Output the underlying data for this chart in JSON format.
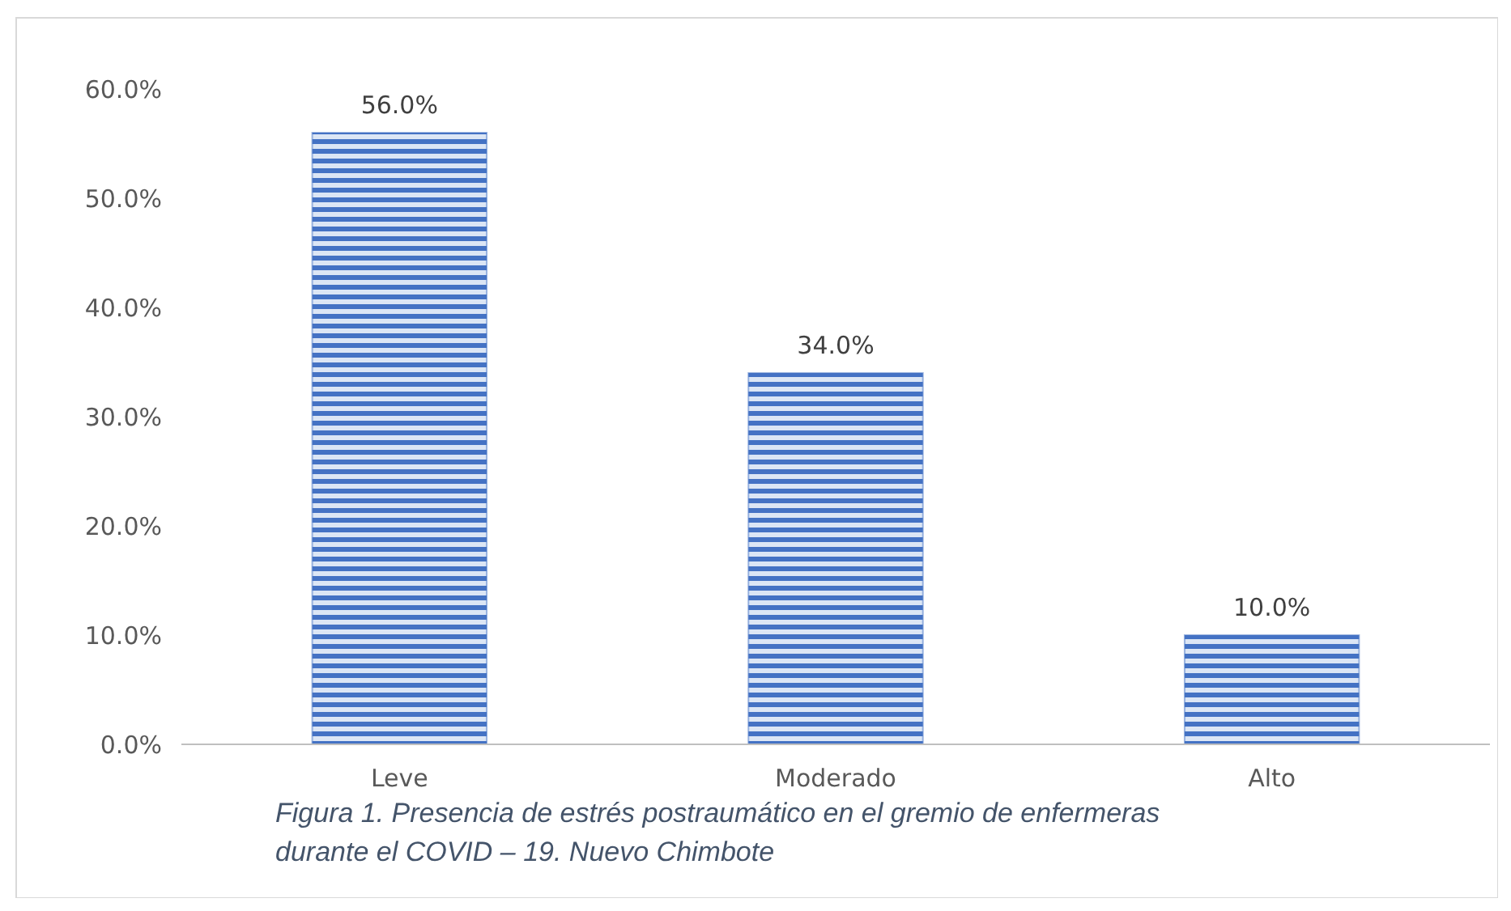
{
  "chart_data": {
    "type": "bar",
    "categories": [
      "Leve",
      "Moderado",
      "Alto"
    ],
    "values": [
      56.0,
      34.0,
      10.0
    ],
    "color": "#4472c4",
    "value_labels": [
      "56.0%",
      "34.0%",
      "10.0%"
    ],
    "ylim": [
      0,
      60
    ],
    "yticks": [
      {
        "value": 0,
        "label": "0.0%"
      },
      {
        "value": 10,
        "label": "10.0%"
      },
      {
        "value": 20,
        "label": "20.0%"
      },
      {
        "value": 30,
        "label": "30.0%"
      },
      {
        "value": 40,
        "label": "40.0%"
      },
      {
        "value": 50,
        "label": "50.0%"
      },
      {
        "value": 60,
        "label": "60.0%"
      }
    ],
    "grid": false,
    "annotations": [
      "Figura 1. Presencia de estrés postraumático en el gremio de enfermeras durante el COVID – 19. Nuevo Chimbote"
    ]
  }
}
